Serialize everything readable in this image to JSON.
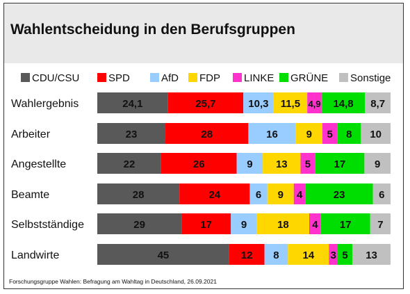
{
  "chart_data": {
    "type": "bar",
    "stacked": true,
    "orientation": "horizontal",
    "title": "Wahlentscheidung in den Berufsgruppen",
    "categories": [
      "Wahlergebnis",
      "Arbeiter",
      "Angestellte",
      "Beamte",
      "Selbstständige",
      "Landwirte"
    ],
    "series": [
      {
        "name": "CDU/CSU",
        "color": "#595959",
        "values": [
          "24,1",
          "23",
          "22",
          "28",
          "29",
          "45"
        ]
      },
      {
        "name": "SPD",
        "color": "#ff0000",
        "values": [
          "25,7",
          "28",
          "26",
          "24",
          "17",
          "12"
        ]
      },
      {
        "name": "AfD",
        "color": "#99ccff",
        "values": [
          "10,3",
          "16",
          "9",
          "6",
          "9",
          "8"
        ]
      },
      {
        "name": "FDP",
        "color": "#ffd700",
        "values": [
          "11,5",
          "9",
          "13",
          "9",
          "18",
          "14"
        ]
      },
      {
        "name": "LINKE",
        "color": "#ff33cc",
        "values": [
          "4,9",
          "5",
          "5",
          "4",
          "4",
          "3"
        ]
      },
      {
        "name": "GRÜNE",
        "color": "#00dd00",
        "values": [
          "14,8",
          "8",
          "17",
          "23",
          "17",
          "5"
        ]
      },
      {
        "name": "Sonstige",
        "color": "#c0c0c0",
        "values": [
          "8,7",
          "10",
          "9",
          "6",
          "7",
          "13"
        ]
      }
    ],
    "legend_position": "top",
    "xlim": [
      0,
      100
    ],
    "grid": false,
    "source": "Forschungsgruppe Wahlen: Befragung am Wahltag in Deutschland, 26.09.2021"
  }
}
